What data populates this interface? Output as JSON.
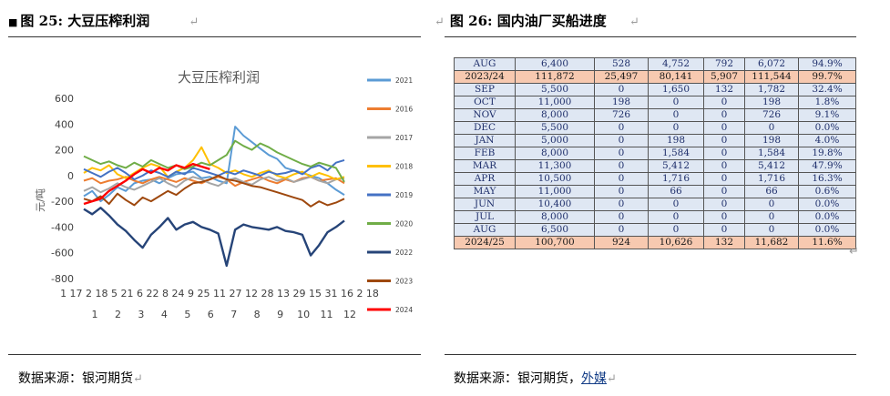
{
  "left": {
    "fig_label": "图 25:",
    "fig_title": "大豆压榨利润",
    "source": "数据来源：银河期货"
  },
  "right": {
    "fig_label": "图 26:",
    "fig_title": "国内油厂买船进度",
    "source_prefix": "数据来源：银河期货，",
    "source_link": "外媒"
  },
  "return_mark": "↵",
  "table": {
    "rows": [
      {
        "cells": [
          "AUG",
          "6,400",
          "528",
          "4,752",
          "792",
          "6,072",
          "94.9%"
        ],
        "highlight": false
      },
      {
        "cells": [
          "2023/24",
          "111,872",
          "25,497",
          "80,141",
          "5,907",
          "111,544",
          "99.7%"
        ],
        "highlight": true
      },
      {
        "cells": [
          "SEP",
          "5,500",
          "0",
          "1,650",
          "132",
          "1,782",
          "32.4%"
        ],
        "highlight": false
      },
      {
        "cells": [
          "OCT",
          "11,000",
          "198",
          "0",
          "0",
          "198",
          "1.8%"
        ],
        "highlight": false
      },
      {
        "cells": [
          "NOV",
          "8,000",
          "726",
          "0",
          "0",
          "726",
          "9.1%"
        ],
        "highlight": false
      },
      {
        "cells": [
          "DEC",
          "5,500",
          "0",
          "0",
          "0",
          "0",
          "0.0%"
        ],
        "highlight": false
      },
      {
        "cells": [
          "JAN",
          "5,000",
          "0",
          "198",
          "0",
          "198",
          "4.0%"
        ],
        "highlight": false
      },
      {
        "cells": [
          "FEB",
          "8,000",
          "0",
          "1,584",
          "0",
          "1,584",
          "19.8%"
        ],
        "highlight": false
      },
      {
        "cells": [
          "MAR",
          "11,300",
          "0",
          "5,412",
          "0",
          "5,412",
          "47.9%"
        ],
        "highlight": false
      },
      {
        "cells": [
          "APR",
          "10,500",
          "0",
          "1,716",
          "0",
          "1,716",
          "16.3%"
        ],
        "highlight": false
      },
      {
        "cells": [
          "MAY",
          "11,000",
          "0",
          "66",
          "0",
          "66",
          "0.6%"
        ],
        "highlight": false
      },
      {
        "cells": [
          "JUN",
          "10,400",
          "0",
          "0",
          "0",
          "0",
          "0.0%"
        ],
        "highlight": false
      },
      {
        "cells": [
          "JUL",
          "8,000",
          "0",
          "0",
          "0",
          "0",
          "0.0%"
        ],
        "highlight": false
      },
      {
        "cells": [
          "AUG",
          "6,500",
          "0",
          "0",
          "0",
          "0",
          "0.0%"
        ],
        "highlight": false
      },
      {
        "cells": [
          "2024/25",
          "100,700",
          "924",
          "10,626",
          "132",
          "11,682",
          "11.6%"
        ],
        "highlight": true
      }
    ]
  },
  "chart_data": {
    "type": "line",
    "title": "大豆压榨利润",
    "ylabel": "元/吨",
    "ylim": [
      -800,
      600
    ],
    "yticks": [
      600,
      400,
      200,
      0,
      -200,
      -400,
      -600,
      -800
    ],
    "xtick_row1": "1 17 2 18 5 21 6 22 8 24 9 25 11 27 12 28 13 29 15 31 16 2 18",
    "xtick_row2": [
      "1",
      "2",
      "3",
      "4",
      "5",
      "6",
      "7",
      "8",
      "9",
      "10",
      "11",
      "12"
    ],
    "grid": false,
    "legend_placement": "right",
    "series": [
      {
        "name": "2021",
        "color": "#5b9bd5",
        "values": [
          -160,
          -120,
          -200,
          -150,
          -90,
          -120,
          -60,
          -40,
          -30,
          -60,
          -20,
          10,
          20,
          30,
          -20,
          -10,
          -40,
          -60,
          380,
          310,
          260,
          210,
          160,
          130,
          60,
          40,
          20,
          0,
          -20,
          -60,
          -110,
          -150
        ]
      },
      {
        "name": "2016",
        "color": "#ed7d31",
        "values": [
          -40,
          -20,
          -60,
          -40,
          -30,
          -10,
          -40,
          -60,
          -30,
          -10,
          -30,
          -50,
          -20,
          -40,
          -60,
          -30,
          -10,
          -30,
          -80,
          -50,
          -30,
          -10,
          -40,
          -60,
          -30,
          -50,
          -20,
          -10,
          -40,
          -30,
          -20,
          -60
        ]
      },
      {
        "name": "2017",
        "color": "#a5a5a5",
        "values": [
          -120,
          -90,
          -130,
          -100,
          -60,
          -90,
          -110,
          -80,
          -50,
          -20,
          -60,
          -90,
          -40,
          -10,
          -30,
          -60,
          -80,
          -40,
          -20,
          -50,
          -70,
          -30,
          -10,
          -40,
          -20,
          -50,
          -30,
          -10,
          -40,
          -60,
          -30,
          -20
        ]
      },
      {
        "name": "2018",
        "color": "#ffc000",
        "values": [
          20,
          60,
          40,
          80,
          10,
          -20,
          20,
          60,
          90,
          70,
          -10,
          30,
          60,
          120,
          220,
          90,
          60,
          20,
          40,
          10,
          -10,
          20,
          40,
          0,
          -20,
          10,
          30,
          -10,
          20,
          0,
          -30,
          -10
        ]
      },
      {
        "name": "2019",
        "color": "#4472c4",
        "values": [
          50,
          20,
          -10,
          30,
          60,
          20,
          -30,
          0,
          40,
          20,
          -10,
          30,
          10,
          60,
          40,
          20,
          0,
          30,
          10,
          40,
          20,
          0,
          30,
          10,
          20,
          40,
          10,
          60,
          80,
          40,
          100,
          120
        ]
      },
      {
        "name": "2020",
        "color": "#70ad47",
        "values": [
          150,
          120,
          90,
          110,
          80,
          60,
          100,
          70,
          120,
          90,
          60,
          80,
          50,
          70,
          100,
          80,
          120,
          160,
          270,
          230,
          200,
          250,
          220,
          180,
          150,
          120,
          90,
          70,
          100,
          80,
          60,
          -50
        ]
      },
      {
        "name": "2022",
        "color": "#264478",
        "values": [
          -260,
          -300,
          -250,
          -310,
          -380,
          -430,
          -500,
          -560,
          -460,
          -400,
          -330,
          -420,
          -380,
          -360,
          -400,
          -420,
          -450,
          -700,
          -420,
          -380,
          -400,
          -410,
          -420,
          -400,
          -430,
          -440,
          -460,
          -620,
          -540,
          -440,
          -400,
          -350
        ]
      },
      {
        "name": "2023",
        "color": "#9e480e",
        "values": [
          -180,
          -200,
          -160,
          -220,
          -140,
          -190,
          -230,
          -170,
          -200,
          -160,
          -120,
          -150,
          -100,
          -60,
          -50,
          -30,
          0,
          -30,
          -40,
          -60,
          -80,
          -90,
          -110,
          -130,
          -150,
          -170,
          -190,
          -240,
          -200,
          -230,
          -210,
          -180
        ]
      },
      {
        "name": "2024",
        "color": "#ff0000",
        "values": [
          -220,
          -200,
          -180,
          -120,
          -80,
          -40,
          10,
          50,
          20,
          60,
          40,
          80,
          60,
          90,
          70,
          50
        ]
      }
    ]
  }
}
